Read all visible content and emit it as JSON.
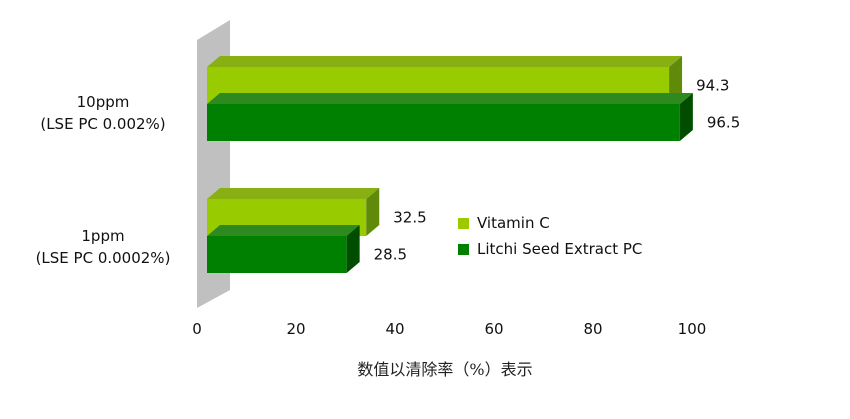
{
  "chart_data": {
    "type": "bar",
    "orientation": "horizontal",
    "categories": [
      {
        "line1": "10ppm",
        "line2": "(LSE PC 0.002%)"
      },
      {
        "line1": "1ppm",
        "line2": "(LSE PC 0.0002%)"
      }
    ],
    "series": [
      {
        "name": "Vitamin C",
        "values": [
          94.3,
          32.5
        ],
        "labels": [
          "94.3",
          "32.5"
        ],
        "color": "#99cc00",
        "top_color": "#88b012",
        "side_color": "#5f8a0a"
      },
      {
        "name": "Litchi Seed Extract PC",
        "values": [
          96.5,
          28.5
        ],
        "labels": [
          "96.5",
          "28.5"
        ],
        "color": "#008000",
        "top_color": "#2e8a1e",
        "side_color": "#004d00"
      }
    ],
    "xlim": [
      0,
      100
    ],
    "xticks": [
      "0",
      "20",
      "40",
      "60",
      "80",
      "100"
    ],
    "xlabel": "数值以清除率（%）表示",
    "legend_position": "right",
    "wall_color": "#c0c0c0"
  }
}
